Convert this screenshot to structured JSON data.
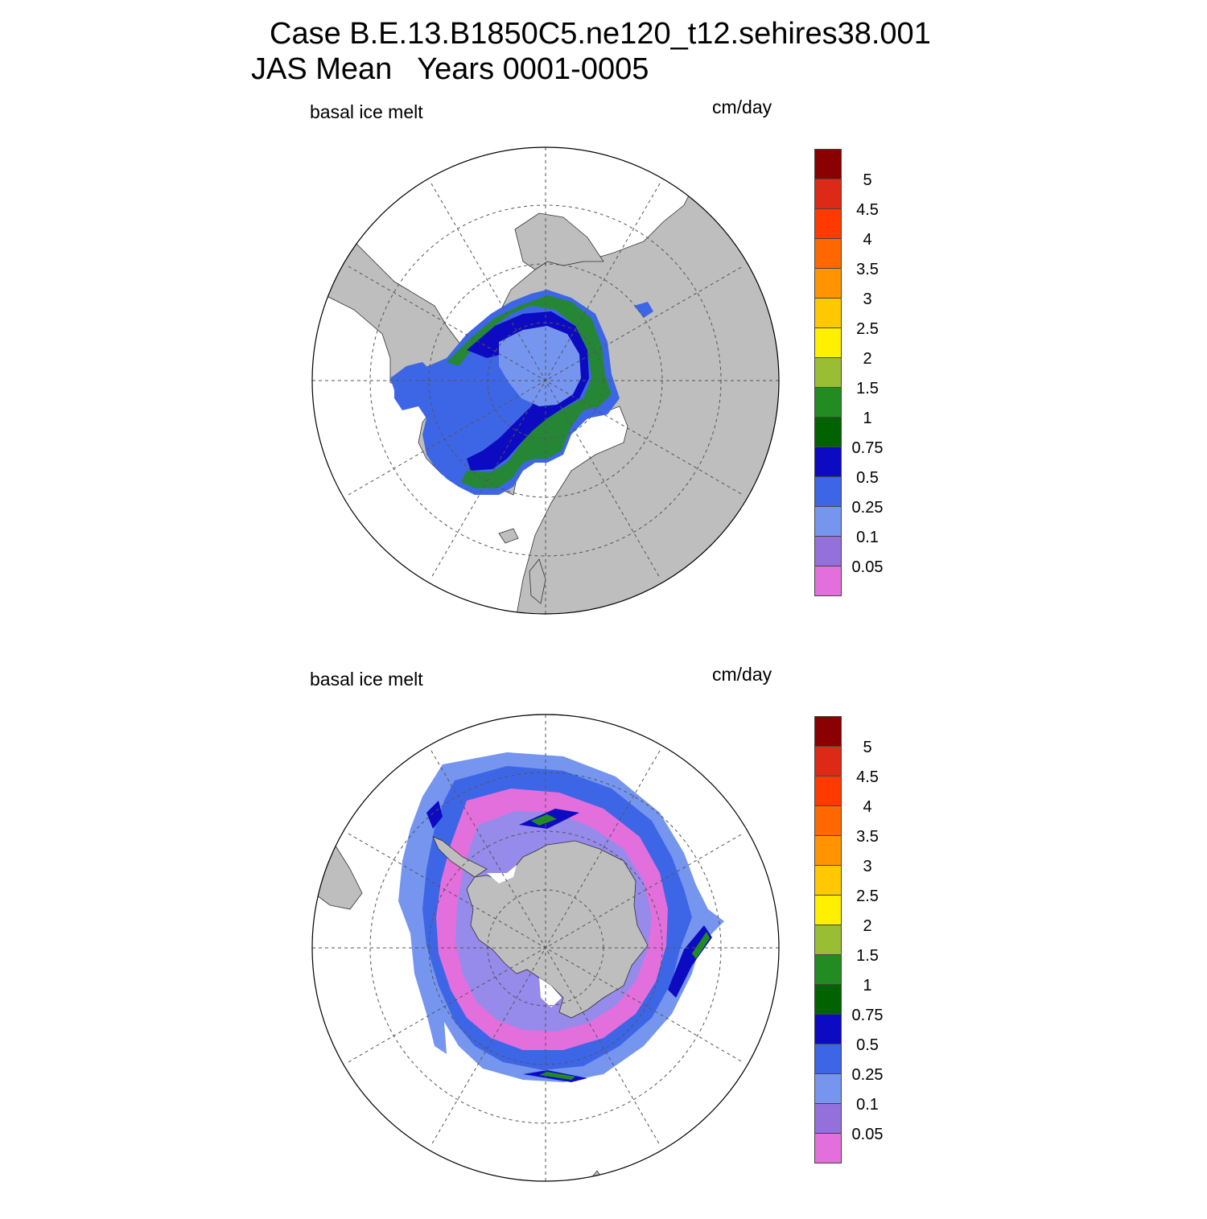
{
  "header": {
    "title_line1": "Case B.E.13.B1850C5.ne120_t12.sehires38.001",
    "title_line2": "JAS Mean   Years 0001-0005"
  },
  "colors": {
    "land": "#bebebe",
    "grid": "#555555"
  },
  "colorbar": {
    "colors": [
      "#e36fdc",
      "#9370db",
      "#7595ef",
      "#3d66e6",
      "#0c0bc2",
      "#006300",
      "#228b22",
      "#99bd33",
      "#fff000",
      "#ffc800",
      "#ff9400",
      "#ff6800",
      "#ff3a00",
      "#dd2a16",
      "#8b0000"
    ],
    "labels": [
      "0.05",
      "0.1",
      "0.25",
      "0.5",
      "0.75",
      "1",
      "1.5",
      "2",
      "2.5",
      "3",
      "3.5",
      "4",
      "4.5",
      "5"
    ]
  },
  "panels": [
    {
      "id": "north",
      "hemisphere": "Northern",
      "variable_label": "basal ice melt",
      "unit_label": "cm/day"
    },
    {
      "id": "south",
      "hemisphere": "Southern",
      "variable_label": "basal ice melt",
      "unit_label": "cm/day"
    }
  ]
}
